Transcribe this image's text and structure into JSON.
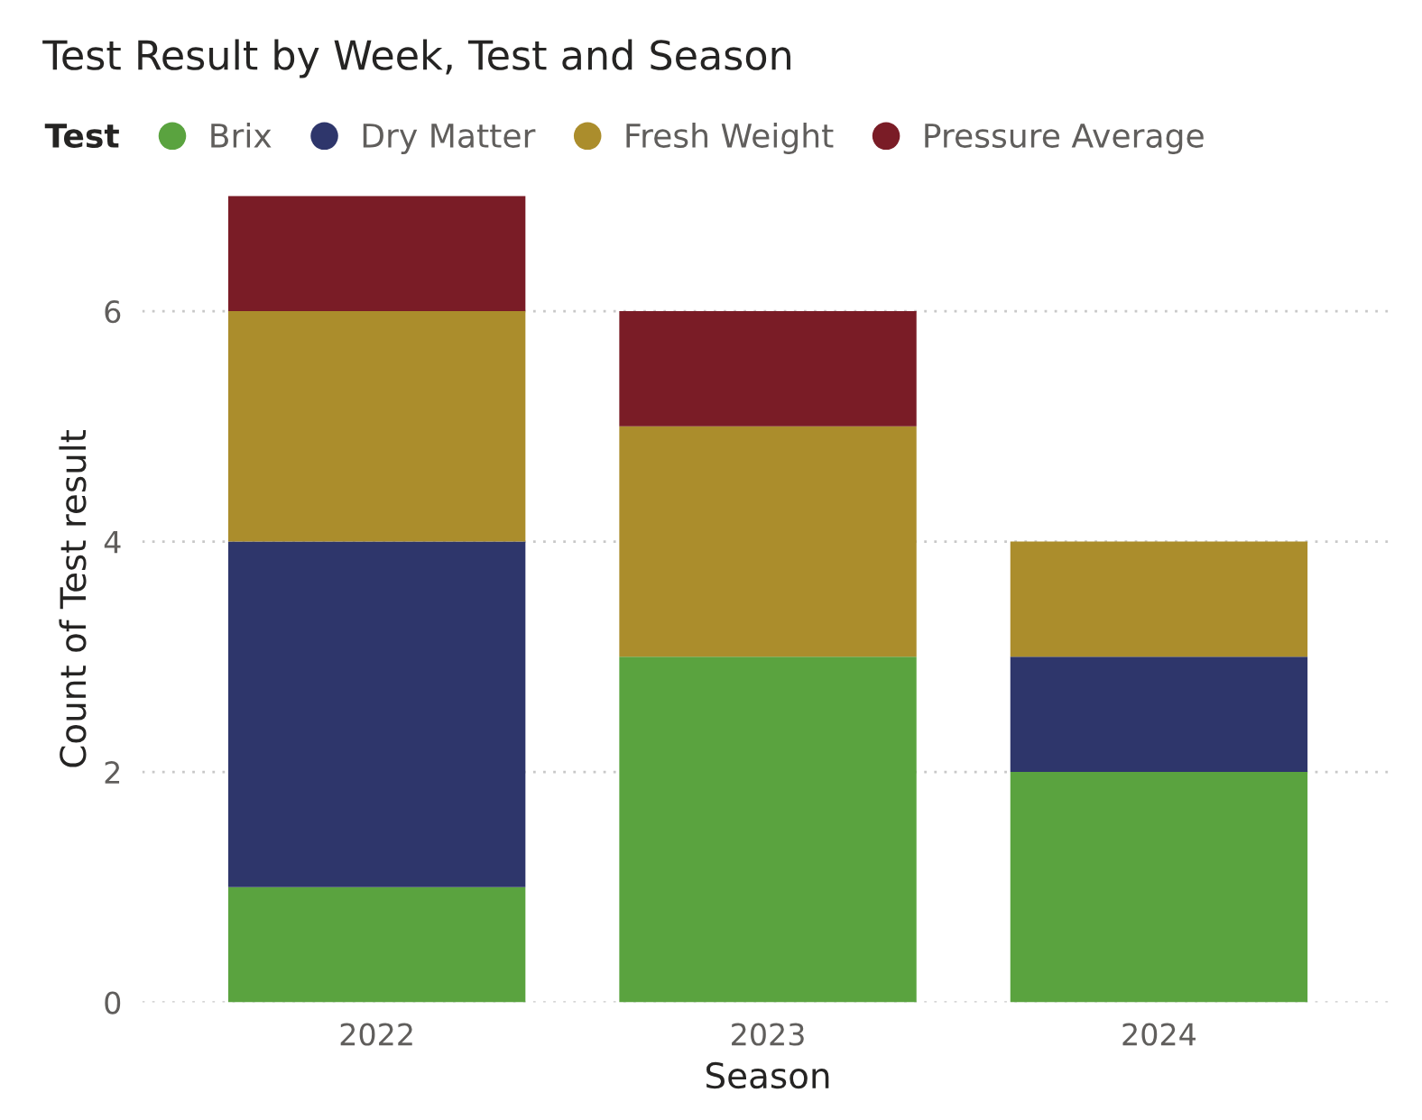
{
  "chart_data": {
    "type": "bar",
    "title": "Test Result by Week, Test and Season",
    "xlabel": "Season",
    "ylabel": "Count of Test result",
    "legend_title": "Test",
    "legend": "top left",
    "stacked": true,
    "grid": "y",
    "categories": [
      "2022",
      "2023",
      "2024"
    ],
    "series": [
      {
        "name": "Brix",
        "color": "#5aa33f",
        "values": [
          1,
          3,
          2
        ]
      },
      {
        "name": "Dry Matter",
        "color": "#2e366b",
        "values": [
          3,
          null,
          1
        ]
      },
      {
        "name": "Fresh Weight",
        "color": "#ab8d2c",
        "values": [
          2,
          2,
          1
        ]
      },
      {
        "name": "Pressure Average",
        "color": "#7a1c26",
        "values": [
          1,
          1,
          null
        ]
      }
    ],
    "ylim": [
      0,
      7
    ],
    "yticks": [
      0,
      2,
      4,
      6
    ]
  }
}
